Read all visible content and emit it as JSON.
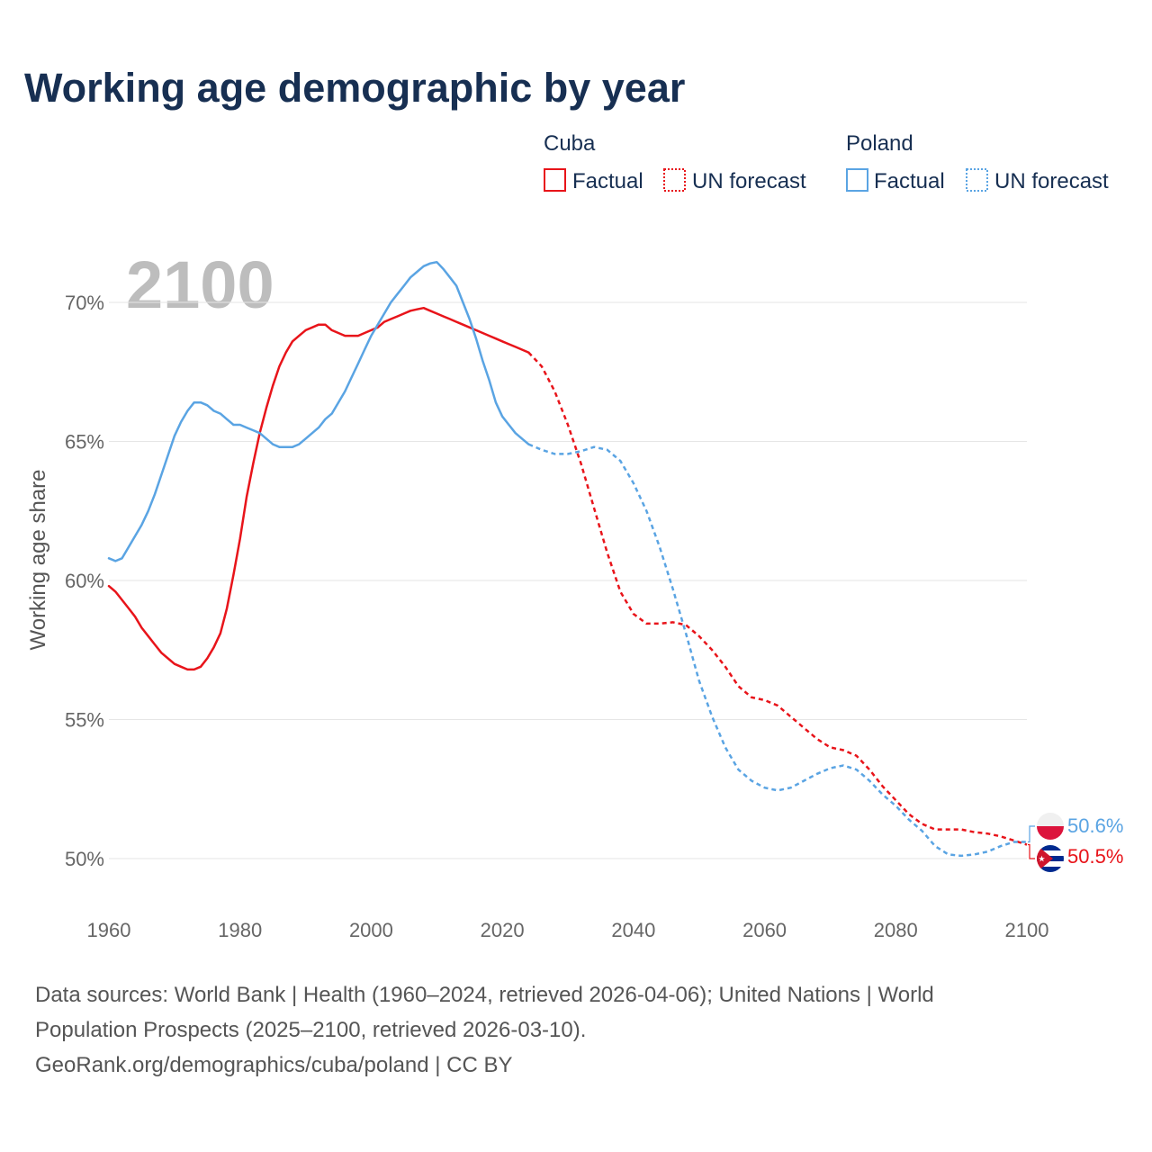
{
  "chart_data": {
    "type": "line",
    "title": "Working age demographic by year",
    "year_overlay": "2100",
    "ylabel": "Working age share",
    "xlabel": "",
    "xlim": [
      1960,
      2100
    ],
    "ylim": [
      48.5,
      72
    ],
    "x_ticks": [
      1960,
      1980,
      2000,
      2020,
      2040,
      2060,
      2080,
      2100
    ],
    "x_tick_labels": [
      "1960",
      "1980",
      "2000",
      "2020",
      "2040",
      "2060",
      "2080",
      "2100"
    ],
    "y_ticks": [
      50,
      55,
      60,
      65,
      70
    ],
    "y_tick_labels": [
      "50%",
      "55%",
      "60%",
      "65%",
      "70%"
    ],
    "grid": true,
    "legend": {
      "placement": "top-right",
      "groups": [
        {
          "name": "Cuba",
          "color": "#e8141a",
          "items": [
            "Factual",
            "UN forecast"
          ]
        },
        {
          "name": "Poland",
          "color": "#5aa4e3",
          "items": [
            "Factual",
            "UN forecast"
          ]
        }
      ]
    },
    "series": [
      {
        "name": "Cuba",
        "color": "#e8141a",
        "end_label": "50.5%",
        "factual": {
          "x": [
            1960,
            1961,
            1962,
            1963,
            1964,
            1965,
            1966,
            1967,
            1968,
            1969,
            1970,
            1971,
            1972,
            1973,
            1974,
            1975,
            1976,
            1977,
            1978,
            1979,
            1980,
            1981,
            1982,
            1983,
            1984,
            1985,
            1986,
            1987,
            1988,
            1989,
            1990,
            1991,
            1992,
            1993,
            1994,
            1995,
            1996,
            1997,
            1998,
            1999,
            2000,
            2001,
            2002,
            2003,
            2004,
            2005,
            2006,
            2007,
            2008,
            2009,
            2010,
            2011,
            2012,
            2013,
            2014,
            2015,
            2016,
            2017,
            2018,
            2019,
            2020,
            2021,
            2022,
            2023,
            2024
          ],
          "y": [
            59.8,
            59.6,
            59.3,
            59.0,
            58.7,
            58.3,
            58.0,
            57.7,
            57.4,
            57.2,
            57.0,
            56.9,
            56.8,
            56.8,
            56.9,
            57.2,
            57.6,
            58.1,
            59.0,
            60.2,
            61.5,
            63.0,
            64.2,
            65.3,
            66.2,
            67.0,
            67.7,
            68.2,
            68.6,
            68.8,
            69.0,
            69.1,
            69.2,
            69.2,
            69.0,
            68.9,
            68.8,
            68.8,
            68.8,
            68.9,
            69.0,
            69.1,
            69.3,
            69.4,
            69.5,
            69.6,
            69.7,
            69.75,
            69.8,
            69.7,
            69.6,
            69.5,
            69.4,
            69.3,
            69.2,
            69.1,
            69.0,
            68.9,
            68.8,
            68.7,
            68.6,
            68.5,
            68.4,
            68.3,
            68.2
          ]
        },
        "forecast": {
          "x": [
            2024,
            2026,
            2028,
            2030,
            2032,
            2034,
            2036,
            2038,
            2040,
            2042,
            2044,
            2046,
            2048,
            2050,
            2052,
            2054,
            2056,
            2058,
            2060,
            2062,
            2064,
            2066,
            2068,
            2070,
            2072,
            2074,
            2076,
            2078,
            2080,
            2082,
            2084,
            2086,
            2088,
            2090,
            2092,
            2094,
            2096,
            2098,
            2100
          ],
          "y": [
            68.2,
            67.7,
            66.8,
            65.6,
            64.2,
            62.6,
            61.0,
            59.6,
            58.8,
            58.45,
            58.45,
            58.5,
            58.4,
            58.0,
            57.5,
            56.9,
            56.2,
            55.8,
            55.7,
            55.5,
            55.1,
            54.7,
            54.3,
            54.0,
            53.9,
            53.7,
            53.2,
            52.6,
            52.1,
            51.6,
            51.25,
            51.05,
            51.05,
            51.05,
            50.95,
            50.9,
            50.8,
            50.65,
            50.5
          ]
        }
      },
      {
        "name": "Poland",
        "color": "#5aa4e3",
        "end_label": "50.6%",
        "factual": {
          "x": [
            1960,
            1961,
            1962,
            1963,
            1964,
            1965,
            1966,
            1967,
            1968,
            1969,
            1970,
            1971,
            1972,
            1973,
            1974,
            1975,
            1976,
            1977,
            1978,
            1979,
            1980,
            1981,
            1982,
            1983,
            1984,
            1985,
            1986,
            1987,
            1988,
            1989,
            1990,
            1991,
            1992,
            1993,
            1994,
            1995,
            1996,
            1997,
            1998,
            1999,
            2000,
            2001,
            2002,
            2003,
            2004,
            2005,
            2006,
            2007,
            2008,
            2009,
            2010,
            2011,
            2012,
            2013,
            2014,
            2015,
            2016,
            2017,
            2018,
            2019,
            2020,
            2021,
            2022,
            2023,
            2024
          ],
          "y": [
            60.8,
            60.7,
            60.8,
            61.2,
            61.6,
            62.0,
            62.5,
            63.1,
            63.8,
            64.5,
            65.2,
            65.7,
            66.1,
            66.4,
            66.4,
            66.3,
            66.1,
            66.0,
            65.8,
            65.6,
            65.6,
            65.5,
            65.4,
            65.3,
            65.1,
            64.9,
            64.8,
            64.8,
            64.8,
            64.9,
            65.1,
            65.3,
            65.5,
            65.8,
            66.0,
            66.4,
            66.8,
            67.3,
            67.8,
            68.3,
            68.8,
            69.2,
            69.6,
            70.0,
            70.3,
            70.6,
            70.9,
            71.1,
            71.3,
            71.4,
            71.45,
            71.2,
            70.9,
            70.6,
            70.0,
            69.4,
            68.7,
            67.9,
            67.2,
            66.4,
            65.9,
            65.6,
            65.3,
            65.1,
            64.9
          ]
        },
        "forecast": {
          "x": [
            2024,
            2026,
            2028,
            2030,
            2032,
            2034,
            2036,
            2038,
            2040,
            2042,
            2044,
            2046,
            2048,
            2050,
            2052,
            2054,
            2056,
            2058,
            2060,
            2062,
            2064,
            2066,
            2068,
            2070,
            2072,
            2074,
            2076,
            2078,
            2080,
            2082,
            2084,
            2086,
            2088,
            2090,
            2092,
            2094,
            2096,
            2098,
            2100
          ],
          "y": [
            64.9,
            64.7,
            64.55,
            64.55,
            64.65,
            64.8,
            64.7,
            64.3,
            63.5,
            62.5,
            61.2,
            59.7,
            58.1,
            56.4,
            55.1,
            54.0,
            53.2,
            52.8,
            52.55,
            52.45,
            52.55,
            52.8,
            53.05,
            53.25,
            53.35,
            53.2,
            52.8,
            52.3,
            51.9,
            51.4,
            51.0,
            50.45,
            50.15,
            50.1,
            50.15,
            50.25,
            50.45,
            50.6,
            50.6
          ]
        }
      }
    ]
  },
  "footer": {
    "line1": "Data sources: World Bank | Health (1960–2024, retrieved 2026-04-06); United Nations | World",
    "line2": "Population Prospects (2025–2100, retrieved 2026-03-10).",
    "line3": "GeoRank.org/demographics/cuba/poland | CC BY"
  }
}
